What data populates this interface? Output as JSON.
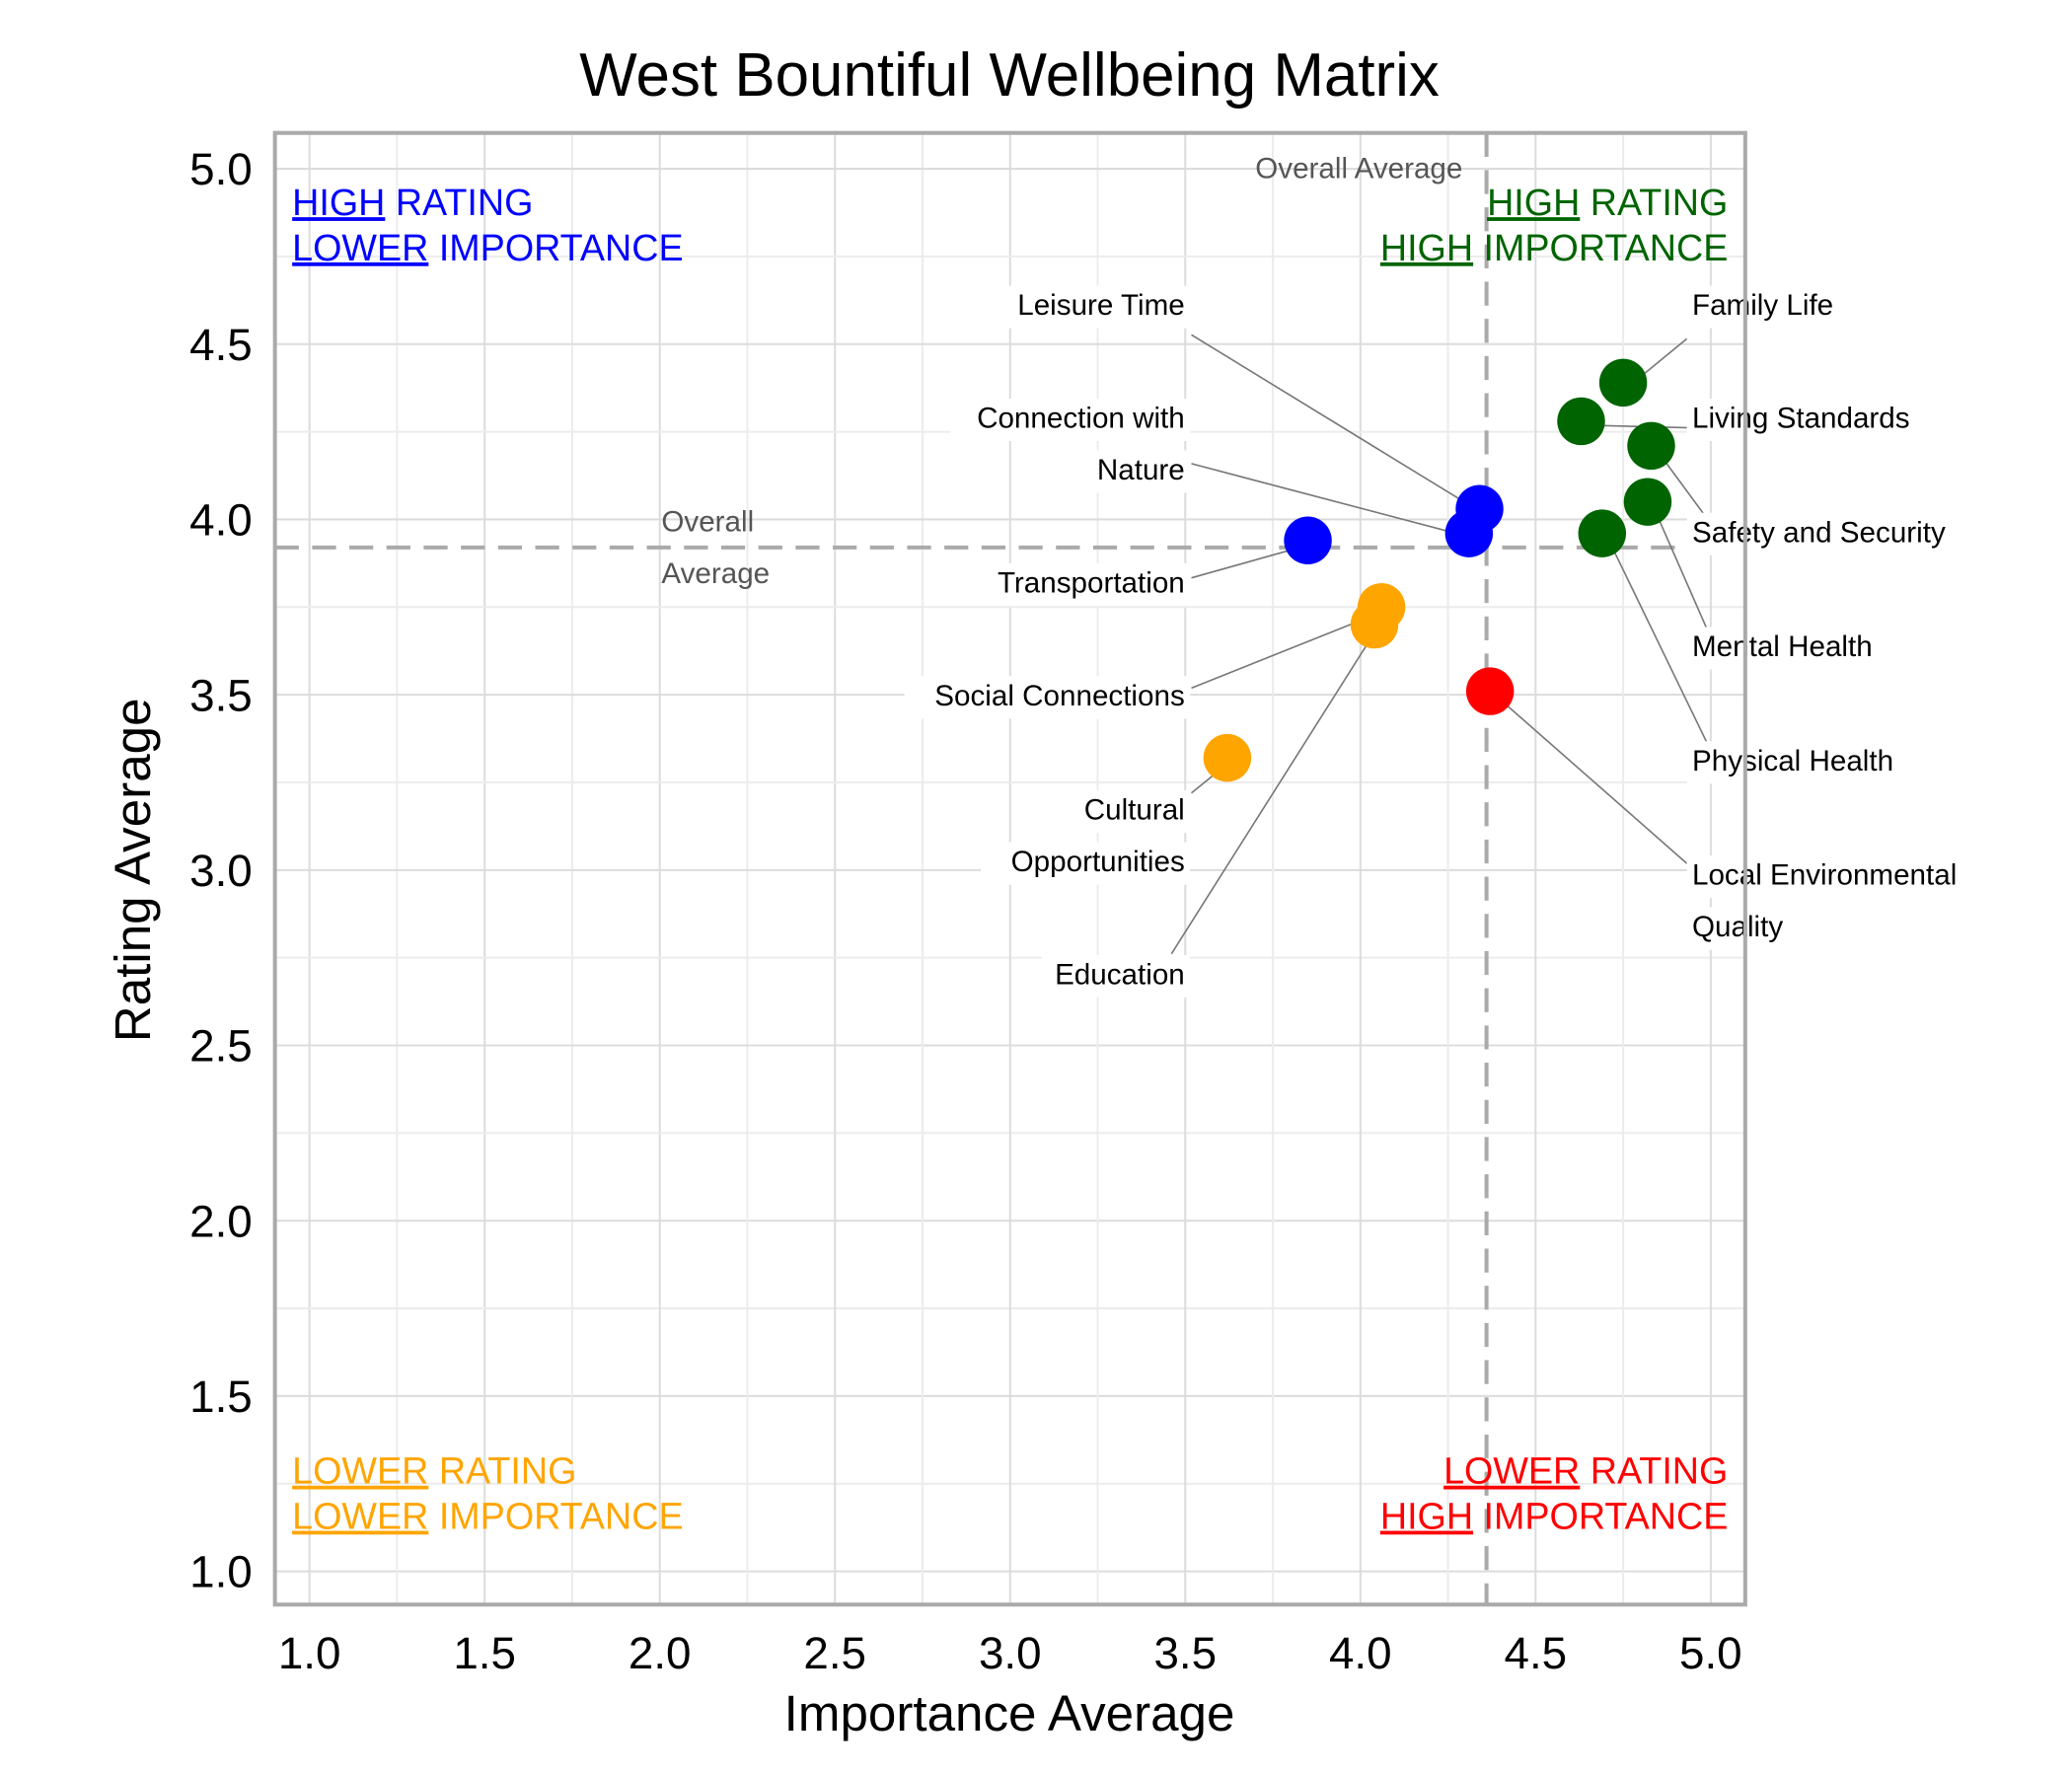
{
  "chart_data": {
    "type": "scatter",
    "title": "West Bountiful Wellbeing Matrix",
    "xlabel": "Importance Average",
    "ylabel": "Rating Average",
    "xlim": [
      0.9,
      5.1
    ],
    "ylim": [
      0.9,
      5.1
    ],
    "xticks": [
      "1.0",
      "1.5",
      "2.0",
      "2.5",
      "3.0",
      "3.5",
      "4.0",
      "4.5",
      "5.0"
    ],
    "yticks": [
      "1.0",
      "1.5",
      "2.0",
      "2.5",
      "3.0",
      "3.5",
      "4.0",
      "4.5",
      "5.0"
    ],
    "grid": true,
    "overall_average": {
      "x": 4.36,
      "y": 3.92,
      "x_label": "Overall Average",
      "y_label": [
        "Overall",
        "Average"
      ]
    },
    "colors": {
      "high_high": "#006400",
      "high_low": "#0000ff",
      "low_low": "#ffa500",
      "low_high": "#ff0000"
    },
    "points": [
      {
        "label": [
          "Family Life"
        ],
        "x": 4.75,
        "y": 4.39,
        "quadrant": "high_high"
      },
      {
        "label": [
          "Living Standards"
        ],
        "x": 4.63,
        "y": 4.28,
        "quadrant": "high_high"
      },
      {
        "label": [
          "Safety and Security"
        ],
        "x": 4.83,
        "y": 4.21,
        "quadrant": "high_high"
      },
      {
        "label": [
          "Mental Health"
        ],
        "x": 4.82,
        "y": 4.05,
        "quadrant": "high_high"
      },
      {
        "label": [
          "Physical Health"
        ],
        "x": 4.69,
        "y": 3.96,
        "quadrant": "high_high"
      },
      {
        "label": [
          "Local Environmental",
          "Quality"
        ],
        "x": 4.37,
        "y": 3.51,
        "quadrant": "low_high"
      },
      {
        "label": [
          "Leisure Time"
        ],
        "x": 4.34,
        "y": 4.03,
        "quadrant": "high_low"
      },
      {
        "label": [
          "Connection with",
          "Nature"
        ],
        "x": 4.31,
        "y": 3.96,
        "quadrant": "high_low"
      },
      {
        "label": [
          "Transportation"
        ],
        "x": 3.85,
        "y": 3.94,
        "quadrant": "high_low"
      },
      {
        "label": [
          "Social Connections"
        ],
        "x": 4.06,
        "y": 3.75,
        "quadrant": "low_low"
      },
      {
        "label": [
          "Education"
        ],
        "x": 4.04,
        "y": 3.7,
        "quadrant": "low_low"
      },
      {
        "label": [
          "Cultural",
          "Opportunities"
        ],
        "x": 3.62,
        "y": 3.32,
        "quadrant": "low_low"
      }
    ],
    "quadrant_labels": {
      "high_low": [
        [
          "HIGH",
          " RATING"
        ],
        [
          "LOWER",
          " IMPORTANCE"
        ]
      ],
      "high_high": [
        [
          "HIGH",
          " RATING"
        ],
        [
          "HIGH",
          " IMPORTANCE"
        ]
      ],
      "low_low": [
        [
          "LOWER",
          " RATING"
        ],
        [
          "LOWER",
          " IMPORTANCE"
        ]
      ],
      "low_high": [
        [
          "LOWER",
          " RATING"
        ],
        [
          "HIGH",
          " IMPORTANCE"
        ]
      ]
    }
  }
}
